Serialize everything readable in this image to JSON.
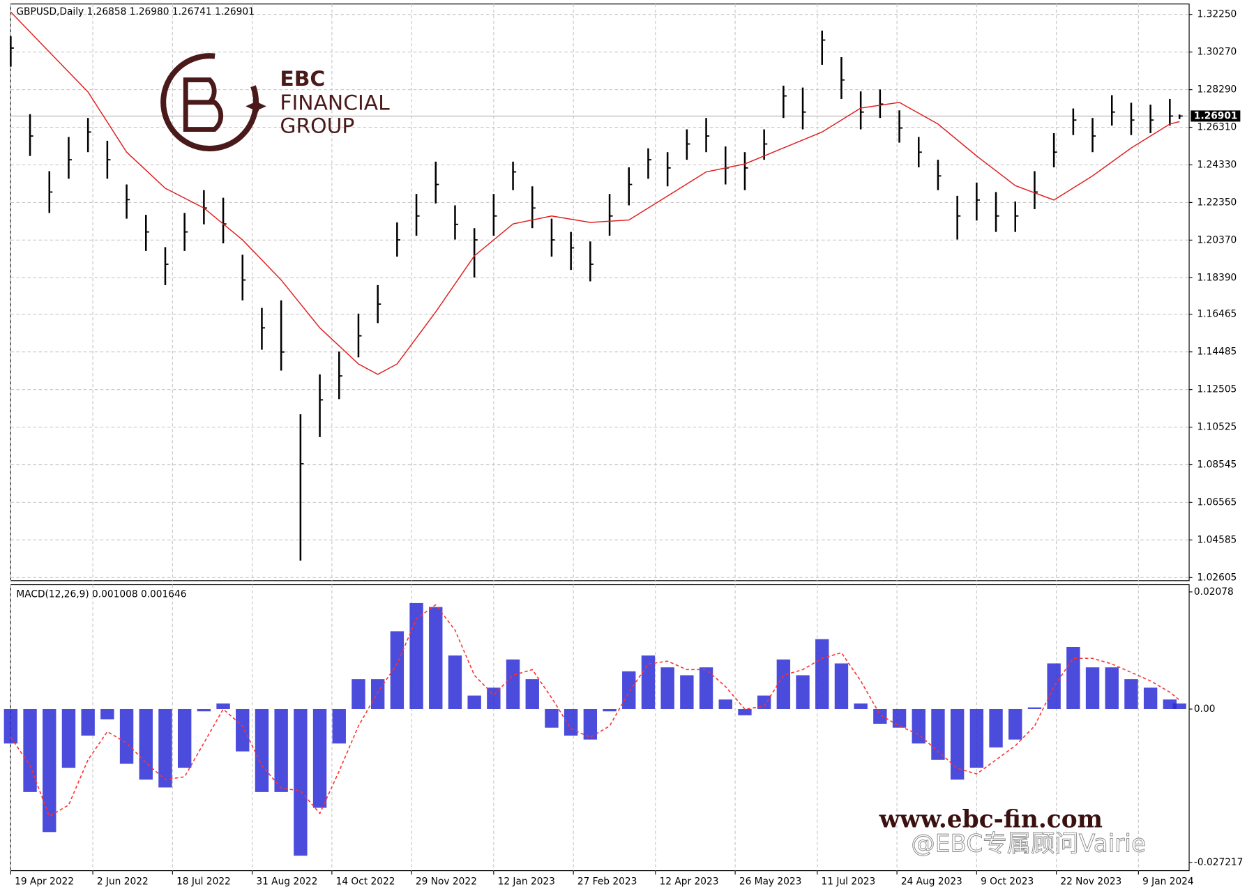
{
  "chart_data": [
    {
      "type": "ohlc",
      "title": "GBPUSD,Daily  1.26858 1.26980 1.26741 1.26901",
      "color": "#000000",
      "x": [
        0,
        8,
        16,
        24,
        32,
        40,
        48,
        56,
        64,
        72,
        80,
        88,
        96,
        104,
        112,
        120,
        128,
        136,
        144,
        152,
        160,
        168,
        176,
        184,
        192,
        200,
        208,
        216,
        224,
        232,
        240,
        248,
        256,
        264,
        272,
        280,
        288,
        296,
        304,
        312,
        320,
        328,
        336,
        344,
        352,
        360,
        368,
        376,
        384,
        392,
        400,
        408,
        416,
        424,
        432,
        440,
        448,
        456,
        464,
        472,
        480,
        484
      ],
      "high": [
        1.311,
        1.27,
        1.24,
        1.258,
        1.268,
        1.256,
        1.233,
        1.217,
        1.2,
        1.218,
        1.23,
        1.226,
        1.196,
        1.168,
        1.172,
        1.112,
        1.133,
        1.145,
        1.165,
        1.18,
        1.213,
        1.228,
        1.245,
        1.222,
        1.21,
        1.228,
        1.245,
        1.232,
        1.215,
        1.208,
        1.203,
        1.228,
        1.242,
        1.252,
        1.25,
        1.262,
        1.268,
        1.253,
        1.25,
        1.262,
        1.285,
        1.284,
        1.314,
        1.3,
        1.282,
        1.283,
        1.272,
        1.258,
        1.246,
        1.227,
        1.234,
        1.229,
        1.224,
        1.24,
        1.26,
        1.273,
        1.268,
        1.28,
        1.276,
        1.275,
        1.278,
        1.2698
      ],
      "low": [
        1.295,
        1.248,
        1.218,
        1.236,
        1.25,
        1.236,
        1.215,
        1.198,
        1.18,
        1.198,
        1.212,
        1.202,
        1.172,
        1.146,
        1.135,
        1.035,
        1.1,
        1.12,
        1.142,
        1.16,
        1.195,
        1.206,
        1.223,
        1.204,
        1.184,
        1.206,
        1.23,
        1.21,
        1.195,
        1.188,
        1.182,
        1.206,
        1.222,
        1.236,
        1.232,
        1.246,
        1.25,
        1.233,
        1.23,
        1.246,
        1.268,
        1.262,
        1.296,
        1.278,
        1.262,
        1.268,
        1.255,
        1.242,
        1.23,
        1.204,
        1.214,
        1.208,
        1.208,
        1.22,
        1.242,
        1.259,
        1.25,
        1.264,
        1.259,
        1.26,
        1.264,
        1.26741
      ],
      "close": [
        1.3048,
        1.2585,
        1.229,
        1.246,
        1.2606,
        1.246,
        1.225,
        1.208,
        1.191,
        1.208,
        1.2206,
        1.2122,
        1.1827,
        1.1575,
        1.1448,
        1.086,
        1.1196,
        1.1322,
        1.1533,
        1.17,
        1.2038,
        1.2164,
        1.233,
        1.212,
        1.2038,
        1.2164,
        1.2396,
        1.2206,
        1.2038,
        1.1996,
        1.191,
        1.2164,
        1.233,
        1.246,
        1.2417,
        1.2543,
        1.2585,
        1.2417,
        1.2417,
        1.2543,
        1.2796,
        1.2711,
        1.309,
        1.288,
        1.2711,
        1.2753,
        1.2627,
        1.25,
        1.2375,
        1.2164,
        1.2248,
        1.2164,
        1.2164,
        1.229,
        1.25,
        1.2669,
        1.2585,
        1.2711,
        1.2669,
        1.2669,
        1.269,
        1.26901
      ],
      "moving_average": {
        "color": "#e02020",
        "x": [
          0,
          16,
          32,
          48,
          64,
          80,
          96,
          112,
          128,
          144,
          152,
          160,
          176,
          192,
          208,
          224,
          240,
          256,
          272,
          288,
          304,
          320,
          336,
          352,
          368,
          384,
          400,
          416,
          432,
          448,
          464,
          480,
          484
        ],
        "values": [
          1.3238,
          1.3027,
          1.2817,
          1.25,
          1.231,
          1.2206,
          1.2038,
          1.1827,
          1.1575,
          1.1385,
          1.133,
          1.1385,
          1.1659,
          1.1954,
          1.2122,
          1.2164,
          1.213,
          1.2143,
          1.2269,
          1.2396,
          1.2438,
          1.2522,
          1.2606,
          1.2732,
          1.2762,
          1.2648,
          1.248,
          1.2324,
          1.2248,
          1.2375,
          1.2522,
          1.2648,
          1.2661
        ]
      },
      "last_price": {
        "value": 1.26901,
        "label": "1.26901"
      },
      "xlim": [
        0,
        488
      ],
      "xticks": [
        {
          "value": 0,
          "label": "19 Apr 2022"
        },
        {
          "value": 34,
          "label": "2 Jun 2022"
        },
        {
          "value": 67,
          "label": "18 Jul 2022"
        },
        {
          "value": 100,
          "label": "31 Aug 2022"
        },
        {
          "value": 133,
          "label": "14 Oct 2022"
        },
        {
          "value": 166,
          "label": "29 Nov 2022"
        },
        {
          "value": 200,
          "label": "12 Jan 2023"
        },
        {
          "value": 233,
          "label": "27 Feb 2023"
        },
        {
          "value": 267,
          "label": "12 Apr 2023"
        },
        {
          "value": 300,
          "label": "26 May 2023"
        },
        {
          "value": 334,
          "label": "11 Jul 2023"
        },
        {
          "value": 367,
          "label": "24 Aug 2023"
        },
        {
          "value": 400,
          "label": "9 Oct 2023"
        },
        {
          "value": 433,
          "label": "22 Nov 2023"
        },
        {
          "value": 467,
          "label": "9 Jan 2024"
        }
      ],
      "ylim": [
        1.0244,
        1.328
      ],
      "yticks": [
        {
          "value": 1.3225,
          "label": "1.32250"
        },
        {
          "value": 1.3027,
          "label": "1.30270"
        },
        {
          "value": 1.2829,
          "label": "1.28290"
        },
        {
          "value": 1.2631,
          "label": "1.26310"
        },
        {
          "value": 1.2433,
          "label": "1.24330"
        },
        {
          "value": 1.2235,
          "label": "1.22350"
        },
        {
          "value": 1.2037,
          "label": "1.20370"
        },
        {
          "value": 1.1839,
          "label": "1.18390"
        },
        {
          "value": 1.16465,
          "label": "1.16465"
        },
        {
          "value": 1.14485,
          "label": "1.14485"
        },
        {
          "value": 1.12505,
          "label": "1.12505"
        },
        {
          "value": 1.10525,
          "label": "1.10525"
        },
        {
          "value": 1.08545,
          "label": "1.08545"
        },
        {
          "value": 1.06565,
          "label": "1.06565"
        },
        {
          "value": 1.04585,
          "label": "1.04585"
        },
        {
          "value": 1.02605,
          "label": "1.02605"
        }
      ],
      "grid": true
    },
    {
      "type": "macd",
      "title": "MACD(12,26,9) 0.001008 0.001646",
      "x": [
        0,
        8,
        16,
        24,
        32,
        40,
        48,
        56,
        64,
        72,
        80,
        88,
        96,
        104,
        112,
        120,
        128,
        136,
        144,
        152,
        160,
        168,
        176,
        184,
        192,
        200,
        208,
        216,
        224,
        232,
        240,
        248,
        256,
        264,
        272,
        280,
        288,
        296,
        304,
        312,
        320,
        328,
        336,
        344,
        352,
        360,
        368,
        376,
        384,
        392,
        400,
        408,
        416,
        424,
        432,
        440,
        448,
        456,
        464,
        472,
        480,
        484
      ],
      "histogram": {
        "color": "#2b2bd6",
        "values": [
          -0.0061,
          -0.0147,
          -0.0218,
          -0.0104,
          -0.0047,
          -0.0018,
          -0.0097,
          -0.0125,
          -0.0139,
          -0.0104,
          -0.0004,
          0.001,
          -0.0075,
          -0.0147,
          -0.0147,
          -0.026,
          -0.0175,
          -0.0061,
          0.0053,
          0.0053,
          0.0138,
          0.0188,
          0.0181,
          0.0095,
          0.0024,
          0.0038,
          0.0088,
          0.0053,
          -0.0033,
          -0.0047,
          -0.0054,
          -0.0004,
          0.0067,
          0.0095,
          0.0074,
          0.006,
          0.0074,
          0.0017,
          -0.0011,
          0.0024,
          0.0088,
          0.006,
          0.0124,
          0.0081,
          0.001,
          -0.0026,
          -0.0033,
          -0.0061,
          -0.009,
          -0.0125,
          -0.0104,
          -0.0068,
          -0.0054,
          0.0003,
          0.0081,
          0.011,
          0.0074,
          0.0074,
          0.0053,
          0.0038,
          0.0017,
          0.001
        ]
      },
      "signal": {
        "color": "#ff3030",
        "values": [
          -0.005,
          -0.01,
          -0.019,
          -0.017,
          -0.009,
          -0.004,
          -0.006,
          -0.0095,
          -0.0125,
          -0.012,
          -0.006,
          0.0,
          -0.003,
          -0.01,
          -0.014,
          -0.0145,
          -0.0185,
          -0.011,
          -0.003,
          0.003,
          0.008,
          0.016,
          0.0185,
          0.014,
          0.006,
          0.0025,
          0.006,
          0.007,
          0.002,
          -0.0035,
          -0.005,
          -0.003,
          0.003,
          0.008,
          0.0085,
          0.007,
          0.007,
          0.004,
          0.0,
          0.0005,
          0.006,
          0.007,
          0.009,
          0.01,
          0.005,
          -0.001,
          -0.003,
          -0.0045,
          -0.0075,
          -0.0105,
          -0.0115,
          -0.009,
          -0.0065,
          -0.003,
          0.004,
          0.009,
          0.009,
          0.008,
          0.0065,
          0.005,
          0.003,
          0.0016
        ]
      },
      "xlim": [
        0,
        488
      ],
      "ylim": [
        -0.02864,
        0.02206
      ],
      "yticks": [
        0.02078,
        {
          "value": 0,
          "label": "0.00"
        },
        -0.027217
      ]
    }
  ],
  "watermarks": {
    "logo": [
      "EBC",
      "FINANCIAL",
      "GROUP"
    ],
    "site": "www.ebc-fin.com",
    "credit": "@EBC专属顾问Vairie"
  }
}
